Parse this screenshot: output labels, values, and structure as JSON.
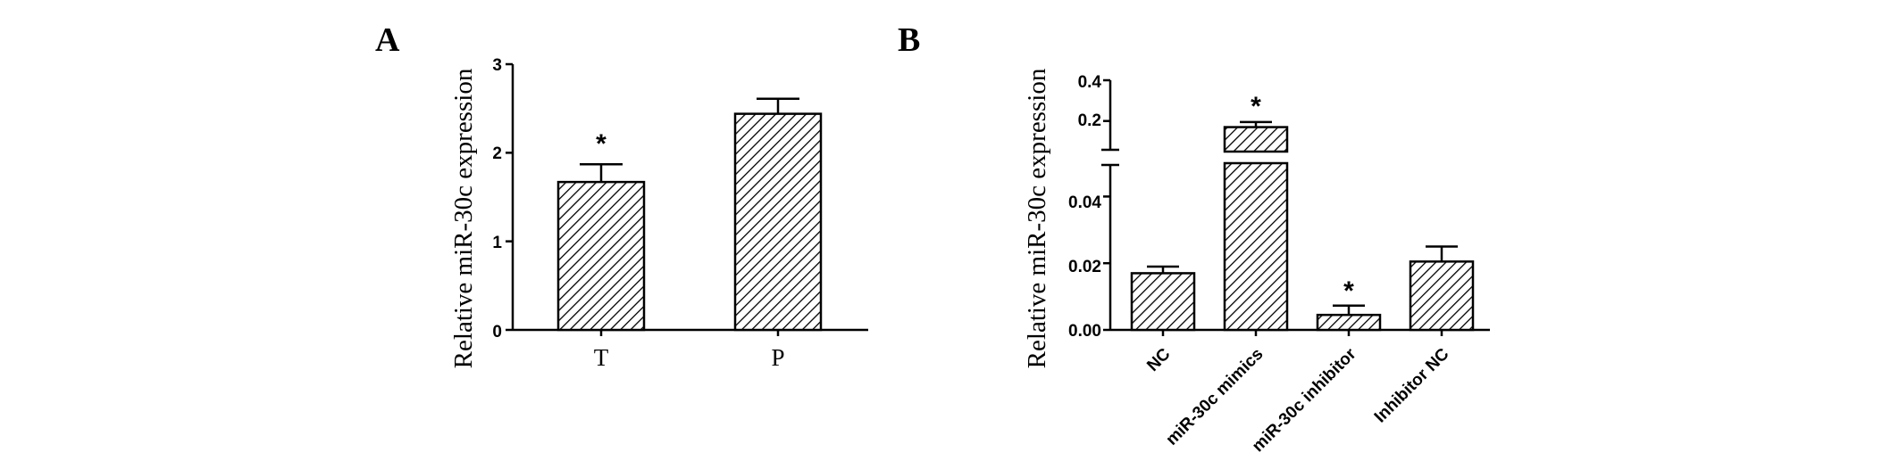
{
  "chart_data": [
    {
      "type": "bar",
      "panel_label": "A",
      "ylabel": "Relative miR-30c expression",
      "xlabel": "",
      "categories": [
        "T",
        "P"
      ],
      "values": [
        1.67,
        2.44
      ],
      "errors": [
        0.2,
        0.17
      ],
      "significance": [
        "*",
        ""
      ],
      "ylim": [
        0,
        3
      ],
      "yticks": [
        "0",
        "1",
        "2",
        "3"
      ],
      "grid": false,
      "legend": "none",
      "fill_pattern": "diagonal-hatch"
    },
    {
      "type": "bar",
      "panel_label": "B",
      "ylabel": "Relative miR-30c expression",
      "xlabel": "",
      "categories": [
        "NC",
        "miR-30c mimics",
        "miR-30c inhibitor",
        "Inhibitor NC"
      ],
      "values": [
        0.017,
        0.17,
        0.0045,
        0.0205
      ],
      "errors": [
        0.002,
        0.025,
        0.0028,
        0.0045
      ],
      "significance": [
        "",
        "*",
        "*",
        ""
      ],
      "axis_break": {
        "lower_range": [
          0,
          0.05
        ],
        "upper_range": [
          0.05,
          0.4
        ]
      },
      "yticks_lower": [
        "0.00",
        "0.02",
        "0.04"
      ],
      "yticks_upper": [
        "0.2",
        "0.4"
      ],
      "grid": false,
      "legend": "none",
      "fill_pattern": "diagonal-hatch"
    }
  ]
}
